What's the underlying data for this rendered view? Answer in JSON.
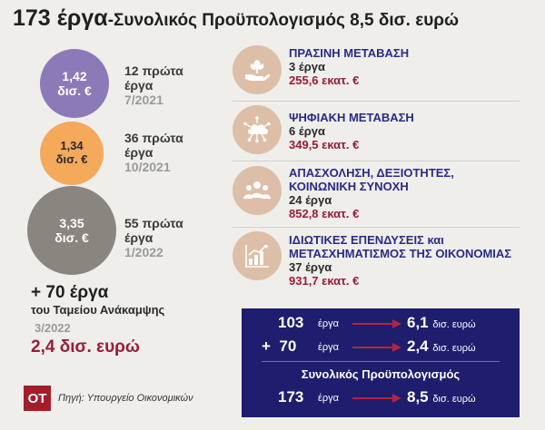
{
  "title": {
    "main": "173 έργα",
    "rest": "-Συνολικός Προϋπολογισμός 8,5 δισ. ευρώ"
  },
  "waves": [
    {
      "amount": "1,42",
      "unit": "δισ. €",
      "count_text": "12 πρώτα",
      "word": "έργα",
      "date": "7/2021",
      "color": "#8c79b8"
    },
    {
      "amount": "1,34",
      "unit": "δισ. €",
      "count_text": "36 πρώτα",
      "word": "έργα",
      "date": "10/2021",
      "color": "#f4a95b"
    },
    {
      "amount": "3,35",
      "unit": "δισ. €",
      "count_text": "55 πρώτα",
      "word": "έργα",
      "date": "1/2022",
      "color": "#8b8580"
    }
  ],
  "recovery_fund": {
    "more": "+ 70 έργα",
    "label": "του Ταμείου Ανάκαμψης",
    "date": "3/2022",
    "amount": "2,4 δισ. ευρώ"
  },
  "categories": [
    {
      "icon": "plant-hand-icon",
      "title_lines": [
        "ΠΡΑΣΙΝΗ ΜΕΤΑΒΑΣΗ"
      ],
      "count": "3 έργα",
      "amount": "255,6 εκατ. €"
    },
    {
      "icon": "cloud-network-icon",
      "title_lines": [
        "ΨΗΦΙΑΚΗ ΜΕΤΑΒΑΣΗ"
      ],
      "count": "6 έργα",
      "amount": "349,5 εκατ. €"
    },
    {
      "icon": "people-group-icon",
      "title_lines": [
        "ΑΠΑΣΧΟΛΗΣΗ, ΔΕΞΙΟΤΗΤΕΣ,",
        "ΚΟΙΝΩΝΙΚΗ ΣΥΝΟΧΗ"
      ],
      "count": "24 έργα",
      "amount": "852,8 εκατ. €"
    },
    {
      "icon": "bar-chart-icon",
      "title_lines": [
        "ΙΔΙΩΤΙΚΕΣ ΕΠΕΝΔΥΣΕΙΣ και",
        "ΜΕΤΑΣΧΗΜΑΤΙΣΜΟΣ ΤΗΣ ΟΙΚΟΝΟΜΙΑΣ"
      ],
      "count": "37 έργα",
      "amount": "931,7 εκατ. €"
    }
  ],
  "summary": {
    "rows": [
      {
        "num": "103",
        "label": "έργα",
        "result": "6,1",
        "result_unit": "δισ. ευρώ"
      },
      {
        "num": "+  70",
        "label": "έργα",
        "result": "2,4",
        "result_unit": "δισ. ευρώ"
      }
    ],
    "heading": "Συνολικός Προϋπολογισμός",
    "total": {
      "num": "173",
      "label": "έργα",
      "result": "8,5",
      "result_unit": "δισ. ευρώ"
    },
    "arrow_color": "#b22540"
  },
  "footer": {
    "logo": "ΟΤ",
    "source": "Πηγή: Υπουργείο Οικονομικών"
  }
}
